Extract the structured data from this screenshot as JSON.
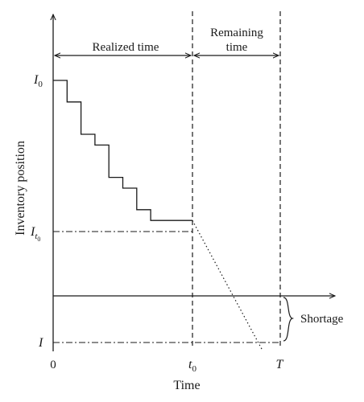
{
  "chart_data": {
    "type": "line",
    "xlabel": "Time",
    "ylabel": "Inventory position",
    "x_ticks": {
      "origin": "0",
      "t0_base": "t",
      "t0_sub": "0",
      "T": "T"
    },
    "y_ticks": {
      "I0_base": "I",
      "I0_sub": "0",
      "It0_base": "I",
      "It0_sub_base": "t",
      "It0_sub_sub": "0",
      "I": "I"
    },
    "annotations": {
      "realized": "Realized time",
      "remaining_line1": "Remaining",
      "remaining_line2": "time",
      "shortage": "Shortage"
    },
    "x_positions": {
      "origin": 0,
      "t0": 1,
      "T": 1.5
    },
    "y_positions": {
      "I": -0.25,
      "zero_line": 0,
      "It0": 0.35,
      "I0": 1
    },
    "series": [
      {
        "style": "solid",
        "values": [
          [
            0,
            1
          ],
          [
            0.1,
            1
          ],
          [
            0.1,
            0.9
          ],
          [
            0.2,
            0.9
          ],
          [
            0.2,
            0.75
          ],
          [
            0.3,
            0.75
          ],
          [
            0.3,
            0.7
          ],
          [
            0.4,
            0.7
          ],
          [
            0.4,
            0.55
          ],
          [
            0.5,
            0.55
          ],
          [
            0.5,
            0.5
          ],
          [
            0.6,
            0.5
          ],
          [
            0.6,
            0.4
          ],
          [
            0.7,
            0.4
          ],
          [
            0.7,
            0.35
          ],
          [
            1.0,
            0.35
          ]
        ]
      },
      {
        "style": "dotted",
        "values": [
          [
            1.0,
            0.35
          ],
          [
            1.5,
            -0.25
          ]
        ]
      }
    ],
    "grid": false
  }
}
